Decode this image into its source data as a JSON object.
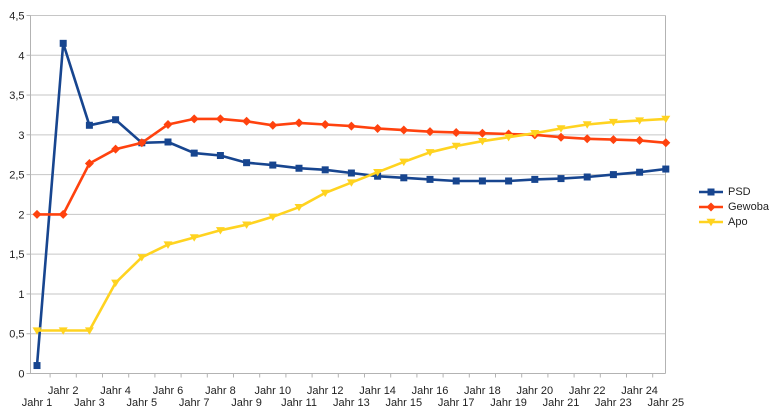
{
  "chart_data": {
    "type": "line",
    "title": "",
    "xlabel": "",
    "ylabel": "",
    "categories": [
      "Jahr 1",
      "Jahr 2",
      "Jahr 3",
      "Jahr 4",
      "Jahr 5",
      "Jahr 6",
      "Jahr 7",
      "Jahr 8",
      "Jahr 9",
      "Jahr 10",
      "Jahr 11",
      "Jahr 12",
      "Jahr 13",
      "Jahr 14",
      "Jahr 15",
      "Jahr 16",
      "Jahr 17",
      "Jahr 18",
      "Jahr 19",
      "Jahr 20",
      "Jahr 21",
      "Jahr 22",
      "Jahr 23",
      "Jahr 24",
      "Jahr 25"
    ],
    "series": [
      {
        "name": "PSD",
        "color": "#17458F",
        "marker": "square",
        "values": [
          0.1,
          4.15,
          3.12,
          3.19,
          2.9,
          2.91,
          2.77,
          2.74,
          2.65,
          2.62,
          2.58,
          2.56,
          2.52,
          2.48,
          2.46,
          2.44,
          2.42,
          2.42,
          2.42,
          2.44,
          2.45,
          2.47,
          2.5,
          2.53,
          2.57
        ]
      },
      {
        "name": "Gewoba",
        "color": "#FF420E",
        "marker": "diamond",
        "values": [
          2.0,
          2.0,
          2.64,
          2.82,
          2.9,
          3.13,
          3.2,
          3.2,
          3.17,
          3.12,
          3.15,
          3.13,
          3.11,
          3.08,
          3.06,
          3.04,
          3.03,
          3.02,
          3.01,
          3.0,
          2.97,
          2.95,
          2.94,
          2.93,
          2.9
        ]
      },
      {
        "name": "Apo",
        "color": "#FFD320",
        "marker": "triangle-down",
        "values": [
          0.54,
          0.54,
          0.54,
          1.14,
          1.46,
          1.62,
          1.71,
          1.8,
          1.87,
          1.97,
          2.09,
          2.27,
          2.4,
          2.53,
          2.66,
          2.78,
          2.86,
          2.92,
          2.97,
          3.02,
          3.08,
          3.13,
          3.16,
          3.18,
          3.2
        ]
      }
    ],
    "ylim": [
      0,
      4.5
    ],
    "y_tick_step": 0.5,
    "y_tick_labels": [
      "0",
      "0,5",
      "1",
      "1,5",
      "2",
      "2,5",
      "3",
      "3,5",
      "4",
      "4,5"
    ],
    "grid": true,
    "legend_position": "right",
    "grid_color": "#C6C6C6",
    "axis_color": "#B3B3B3",
    "label_color": "#1F1F1F",
    "background": "#FFFFFF"
  }
}
